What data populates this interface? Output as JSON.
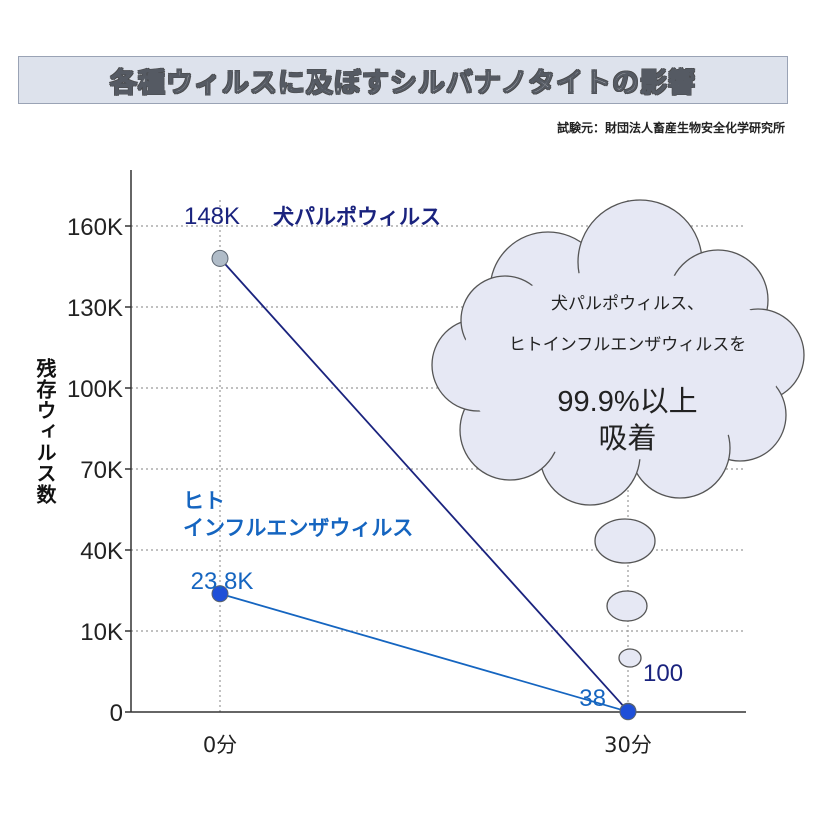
{
  "title": "各種ウィルスに及ぼすシルバナノタイトの影響",
  "source": "試験元：財団法人畜産生物安全化学研究所",
  "callout": {
    "line1": "犬パルポウィルス、",
    "line2": "ヒトインフルエンザウィルスを",
    "line3": "99.9%以上",
    "line4": "吸着"
  },
  "colors": {
    "series_dog": "#1a237e",
    "series_human": "#1565c0",
    "marker_dog": "#b0bcc8",
    "marker_human": "#1e4fd8",
    "title_bg": "#dde2ec"
  },
  "chart_data": {
    "type": "line",
    "categories": [
      "0分",
      "30分"
    ],
    "ylabel": "残存ウィルス数",
    "yticks": [
      "0",
      "10K",
      "40K",
      "70K",
      "100K",
      "130K",
      "160K"
    ],
    "series": [
      {
        "name": "犬パルポウィルス",
        "values": [
          148000,
          100
        ],
        "labels": [
          "148K",
          "100"
        ]
      },
      {
        "name": "ヒト\nインフルエンザウィルス",
        "values": [
          23800,
          38
        ],
        "labels": [
          "23.8K",
          "38"
        ]
      }
    ],
    "grid": true
  }
}
